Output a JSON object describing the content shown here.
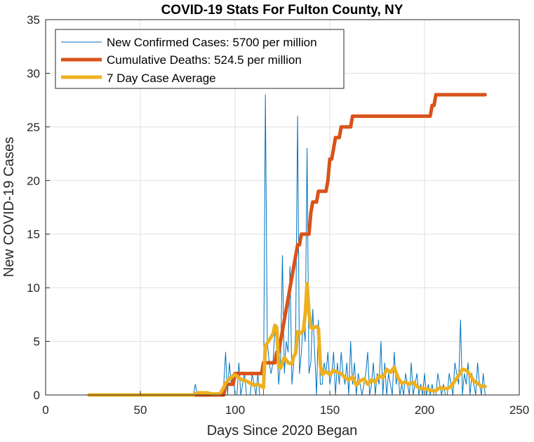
{
  "chart_data": {
    "type": "line",
    "title": "COVID-19 Stats For Fulton County, NY",
    "xlabel": "Days Since 2020 Began",
    "ylabel": "New COVID-19 Cases",
    "xlim": [
      0,
      250
    ],
    "ylim": [
      0,
      35
    ],
    "xticks": [
      0,
      50,
      100,
      150,
      200,
      250
    ],
    "yticks": [
      0,
      5,
      10,
      15,
      20,
      25,
      30,
      35
    ],
    "grid": true,
    "legend_position": "top-left",
    "series": [
      {
        "name": "New Confirmed Cases: 5700 per million",
        "color": "#0072BD",
        "line_width": "thin",
        "x": [
          23,
          30,
          40,
          50,
          60,
          70,
          78,
          79,
          80,
          81,
          82,
          83,
          84,
          85,
          86,
          87,
          88,
          89,
          90,
          91,
          92,
          93,
          94,
          95,
          96,
          97,
          98,
          99,
          100,
          101,
          102,
          103,
          104,
          105,
          106,
          107,
          108,
          109,
          110,
          111,
          112,
          113,
          114,
          115,
          116,
          117,
          118,
          119,
          120,
          121,
          122,
          123,
          124,
          125,
          126,
          127,
          128,
          129,
          130,
          131,
          132,
          133,
          134,
          135,
          136,
          137,
          138,
          139,
          140,
          141,
          142,
          143,
          144,
          145,
          146,
          147,
          148,
          149,
          150,
          151,
          152,
          153,
          154,
          155,
          156,
          157,
          158,
          159,
          160,
          161,
          162,
          163,
          164,
          165,
          166,
          167,
          168,
          169,
          170,
          171,
          172,
          173,
          174,
          175,
          176,
          177,
          178,
          179,
          180,
          181,
          182,
          183,
          184,
          185,
          186,
          187,
          188,
          189,
          190,
          191,
          192,
          193,
          194,
          195,
          196,
          197,
          198,
          199,
          200,
          201,
          202,
          203,
          204,
          205,
          206,
          207,
          208,
          209,
          210,
          211,
          212,
          213,
          214,
          215,
          216,
          217,
          218,
          219,
          220,
          221,
          222,
          223,
          224,
          225,
          226,
          227,
          228,
          229,
          230,
          231,
          232
        ],
        "y": [
          0,
          0,
          0,
          0,
          0,
          0,
          0,
          1,
          0,
          0,
          0,
          0,
          0,
          0,
          0,
          0,
          0,
          0,
          0,
          0,
          0,
          0,
          1,
          4,
          0,
          3,
          1,
          2,
          0,
          0,
          3,
          0,
          1,
          2,
          0,
          0,
          0,
          2,
          1,
          0,
          2,
          0,
          0,
          0,
          28,
          5,
          3,
          2,
          3,
          6,
          5,
          1,
          3,
          13,
          2,
          5,
          4,
          12,
          1,
          3,
          6,
          26,
          2,
          4,
          7,
          5,
          23,
          2,
          3,
          8,
          4,
          0,
          7,
          1,
          1,
          3,
          2,
          4,
          1,
          2,
          4,
          0,
          3,
          1,
          4,
          2,
          1,
          3,
          0,
          5,
          1,
          3,
          0,
          2,
          1,
          0,
          1,
          2,
          4,
          0,
          1,
          3,
          0,
          2,
          1,
          5,
          0,
          3,
          0,
          2,
          1,
          0,
          4,
          1,
          2,
          0,
          1,
          0,
          2,
          1,
          0,
          3,
          0,
          1,
          2,
          0,
          1,
          0,
          2,
          0,
          1,
          0,
          1,
          0,
          0,
          2,
          1,
          0,
          1,
          0,
          0,
          2,
          1,
          0,
          3,
          2,
          1,
          7,
          0,
          2,
          1,
          3,
          0,
          2,
          1,
          0,
          3,
          1,
          0,
          2,
          0
        ]
      },
      {
        "name": "Cumulative Deaths: 524.5 per million",
        "color": "#D95319",
        "line_width": "thick",
        "x": [
          23,
          94,
          95,
          99,
          100,
          101,
          102,
          103,
          104,
          105,
          114,
          115,
          116,
          117,
          118,
          119,
          120,
          121,
          122,
          123,
          124,
          125,
          126,
          127,
          128,
          129,
          130,
          131,
          132,
          133,
          134,
          135,
          136,
          137,
          138,
          139,
          140,
          141,
          142,
          143,
          144,
          145,
          146,
          147,
          148,
          149,
          150,
          151,
          152,
          153,
          154,
          155,
          156,
          157,
          158,
          159,
          160,
          161,
          162,
          163,
          164,
          165,
          166,
          167,
          200,
          201,
          202,
          203,
          204,
          205,
          206,
          207,
          208,
          232
        ],
        "y": [
          0,
          0,
          1,
          1,
          2,
          2,
          2,
          2,
          2,
          2,
          2,
          3,
          3,
          3,
          3,
          3,
          3,
          3,
          4,
          4,
          5,
          6,
          7,
          8,
          9,
          10,
          11,
          12,
          13,
          14,
          14,
          15,
          15,
          15,
          15,
          15,
          17,
          18,
          18,
          18,
          19,
          19,
          19,
          19,
          19,
          20,
          22,
          22,
          23,
          24,
          24,
          24,
          25,
          25,
          25,
          25,
          25,
          25,
          26,
          26,
          26,
          26,
          26,
          26,
          26,
          26,
          26,
          26,
          27,
          27,
          28,
          28,
          28,
          28
        ]
      },
      {
        "name": "7 Day Case Average",
        "color": "#EDB120",
        "line_width": "thick",
        "x": [
          23,
          40,
          60,
          78,
          80,
          82,
          85,
          88,
          90,
          92,
          94,
          95,
          97,
          99,
          100,
          102,
          104,
          106,
          108,
          110,
          112,
          114,
          115,
          116,
          118,
          120,
          121,
          122,
          123,
          124,
          126,
          128,
          130,
          131,
          132,
          133,
          134,
          136,
          137,
          138,
          139,
          140,
          141,
          142,
          143,
          144,
          145,
          146,
          148,
          150,
          152,
          154,
          156,
          158,
          160,
          162,
          164,
          166,
          168,
          170,
          172,
          174,
          176,
          178,
          180,
          182,
          184,
          186,
          188,
          190,
          192,
          194,
          196,
          198,
          200,
          202,
          204,
          206,
          208,
          210,
          212,
          214,
          216,
          218,
          220,
          222,
          224,
          226,
          228,
          230,
          232
        ],
        "y": [
          0,
          0,
          0,
          0,
          0.2,
          0.2,
          0.2,
          0.1,
          0.1,
          0.1,
          0.7,
          1.1,
          1.5,
          1.8,
          1.9,
          1.6,
          1.4,
          1.3,
          1.1,
          0.9,
          1.0,
          0.8,
          0.7,
          4.6,
          5.1,
          5.7,
          6.5,
          6.3,
          2.7,
          2.5,
          3.5,
          3.0,
          2.9,
          3.6,
          3.9,
          5.9,
          5.7,
          6.0,
          7.5,
          10.4,
          7.7,
          6.3,
          6.2,
          6.3,
          6.4,
          6.2,
          2.8,
          1.9,
          2.2,
          1.9,
          2.3,
          2.1,
          2.0,
          1.6,
          1.4,
          1.7,
          0.9,
          1.3,
          1.5,
          1.0,
          1.4,
          1.2,
          1.8,
          1.6,
          2.4,
          2.1,
          2.6,
          1.6,
          1.1,
          1.2,
          1.0,
          1.2,
          0.8,
          0.6,
          0.6,
          0.5,
          0.4,
          0.4,
          0.7,
          0.6,
          0.6,
          0.8,
          1.3,
          1.8,
          2.4,
          2.3,
          1.9,
          1.3,
          1.1,
          0.8,
          0.8
        ]
      }
    ]
  }
}
